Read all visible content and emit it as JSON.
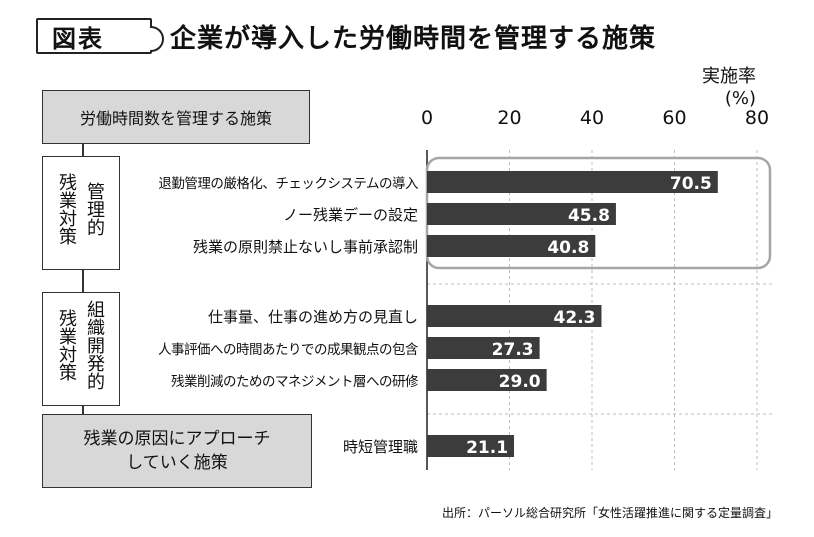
{
  "title": {
    "tag": "図表",
    "text": "企業が導入した労働時間を管理する施策"
  },
  "unit": {
    "line1": "実施率",
    "line2": "(%)"
  },
  "header_box": "労働時間数を管理する施策",
  "groups": [
    {
      "col1": "残業対策",
      "col2": "管理的"
    },
    {
      "col1": "残業対策",
      "col2": "組織開発的"
    }
  ],
  "approach_box": {
    "line1": "残業の原因にアプローチ",
    "line2": "していく施策"
  },
  "source": "出所：パーソル総合研究所「女性活躍推進に関する定量調査」",
  "colors": {
    "bar": "#3c3c3c",
    "grid": "#bdbdbd",
    "highlight": "#a6a6a6"
  },
  "chart_data": {
    "type": "bar",
    "orientation": "horizontal",
    "xlim": [
      0,
      80
    ],
    "ticks": [
      0,
      20,
      40,
      60,
      80
    ],
    "grid": true,
    "categories": [
      "退勤管理の厳格化、チェックシステムの導入",
      "ノー残業デーの設定",
      "残業の原則禁止ないし事前承認制",
      "仕事量、仕事の進め方の見直し",
      "人事評価への時間あたりでの成果観点の包含",
      "残業削減のためのマネジメント層への研修",
      "時短管理職"
    ],
    "values": [
      70.5,
      45.8,
      40.8,
      42.3,
      27.3,
      29.0,
      21.1
    ],
    "value_labels": [
      "70.5",
      "45.8",
      "40.8",
      "42.3",
      "27.3",
      "29.0",
      "21.1"
    ]
  }
}
